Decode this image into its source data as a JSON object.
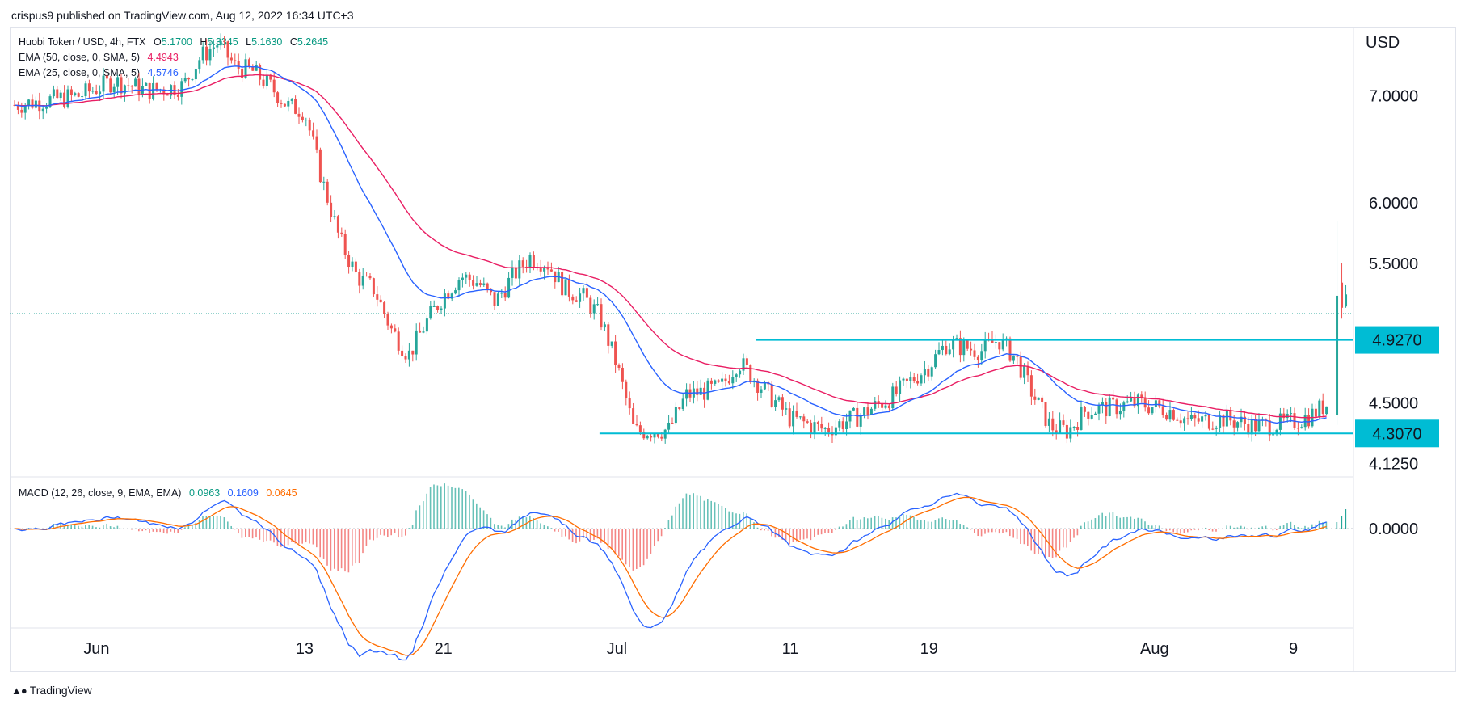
{
  "header": {
    "publisher": "crispus9 published on TradingView.com, Aug 12, 2022 16:34 UTC+3"
  },
  "legend": {
    "symbol": "Huobi Token / USD, 4h, FTX",
    "ohlc": {
      "o_label": "O",
      "o": "5.1700",
      "h_label": "H",
      "h": "5.3345",
      "l_label": "L",
      "l": "5.1630",
      "c_label": "C",
      "c": "5.2645"
    },
    "ema50_label": "EMA (50, close, 0, SMA, 5)",
    "ema50_value": "4.4943",
    "ema25_label": "EMA (25, close, 0, SMA, 5)",
    "ema25_value": "4.5746",
    "macd_label": "MACD (12, 26, close, 9, EMA, EMA)",
    "macd_hist": "0.0963",
    "macd_line": "0.1609",
    "macd_signal": "0.0645"
  },
  "price_axis": {
    "currency": "USD",
    "ticks": [
      "7.0000",
      "6.0000",
      "5.5000",
      "4.5000",
      "4.1250"
    ],
    "level_labels": [
      "4.9270",
      "4.3070"
    ],
    "macd_ticks": [
      "0.0000"
    ]
  },
  "time_axis": {
    "labels": [
      "Jun",
      "13",
      "21",
      "Jul",
      "11",
      "19",
      "Aug",
      "9"
    ]
  },
  "footer": {
    "brand": "TradingView"
  },
  "colors": {
    "up": "#26a69a",
    "down": "#ef5350",
    "ema50": "#e91e63",
    "ema25": "#2962ff",
    "level": "#00bcd4",
    "macd": "#2962ff",
    "signal": "#ff6d00"
  },
  "chart_data": {
    "type": "candlestick",
    "title": "Huobi Token / USD, 4h, FTX",
    "x_range": [
      "2022-05-27",
      "2022-08-12"
    ],
    "y_scale": "log",
    "ylim": [
      4.07,
      7.65
    ],
    "horizontal_levels": [
      {
        "value": 4.927,
        "from": "2022-07-09",
        "to": "2022-08-12"
      },
      {
        "value": 4.307,
        "from": "2022-06-30",
        "to": "2022-08-12"
      }
    ],
    "last_price": 5.2645,
    "price_path": [
      [
        "2022-05-27",
        6.9
      ],
      [
        "2022-05-29",
        6.95
      ],
      [
        "2022-05-31",
        7.0
      ],
      [
        "2022-06-02",
        7.15
      ],
      [
        "2022-06-04",
        7.05
      ],
      [
        "2022-06-06",
        7.1
      ],
      [
        "2022-06-07",
        7.4
      ],
      [
        "2022-06-08",
        7.55
      ],
      [
        "2022-06-09",
        7.3
      ],
      [
        "2022-06-10",
        7.25
      ],
      [
        "2022-06-11",
        7.1
      ],
      [
        "2022-06-12",
        6.9
      ],
      [
        "2022-06-13",
        6.85
      ],
      [
        "2022-06-14",
        6.2
      ],
      [
        "2022-06-15",
        5.7
      ],
      [
        "2022-06-16",
        5.4
      ],
      [
        "2022-06-17",
        5.3
      ],
      [
        "2022-06-18",
        5.0
      ],
      [
        "2022-06-19",
        4.82
      ],
      [
        "2022-06-20",
        5.05
      ],
      [
        "2022-06-21",
        5.25
      ],
      [
        "2022-06-22",
        5.4
      ],
      [
        "2022-06-23",
        5.35
      ],
      [
        "2022-06-24",
        5.2
      ],
      [
        "2022-06-25",
        5.4
      ],
      [
        "2022-06-26",
        5.55
      ],
      [
        "2022-06-27",
        5.5
      ],
      [
        "2022-06-28",
        5.3
      ],
      [
        "2022-06-29",
        5.25
      ],
      [
        "2022-06-30",
        5.1
      ],
      [
        "2022-07-01",
        4.75
      ],
      [
        "2022-07-02",
        4.32
      ],
      [
        "2022-07-04",
        4.33
      ],
      [
        "2022-07-05",
        4.55
      ],
      [
        "2022-07-07",
        4.6
      ],
      [
        "2022-07-08",
        4.78
      ],
      [
        "2022-07-09",
        4.65
      ],
      [
        "2022-07-11",
        4.4
      ],
      [
        "2022-07-13",
        4.33
      ],
      [
        "2022-07-15",
        4.42
      ],
      [
        "2022-07-17",
        4.55
      ],
      [
        "2022-07-19",
        4.75
      ],
      [
        "2022-07-20",
        4.9
      ],
      [
        "2022-07-22",
        4.85
      ],
      [
        "2022-07-23",
        4.93
      ],
      [
        "2022-07-24",
        4.8
      ],
      [
        "2022-07-25",
        4.55
      ],
      [
        "2022-07-26",
        4.35
      ],
      [
        "2022-07-27",
        4.32
      ],
      [
        "2022-07-28",
        4.45
      ],
      [
        "2022-07-30",
        4.48
      ],
      [
        "2022-07-31",
        4.5
      ],
      [
        "2022-08-02",
        4.45
      ],
      [
        "2022-08-03",
        4.38
      ],
      [
        "2022-08-05",
        4.4
      ],
      [
        "2022-08-07",
        4.35
      ],
      [
        "2022-08-09",
        4.38
      ],
      [
        "2022-08-10",
        4.42
      ],
      [
        "2022-08-11",
        4.5
      ],
      [
        "2022-08-11T12",
        5.2
      ],
      [
        "2022-08-12",
        5.2645
      ]
    ],
    "series": [
      {
        "name": "EMA (50, close, 0, SMA, 5)",
        "last": 4.4943
      },
      {
        "name": "EMA (25, close, 0, SMA, 5)",
        "last": 4.5746
      }
    ],
    "macd": {
      "name": "MACD (12, 26, close, 9, EMA, EMA)",
      "histogram_last": 0.0963,
      "macd_last": 0.1609,
      "signal_last": 0.0645,
      "zero_tick": "0.0000"
    }
  }
}
